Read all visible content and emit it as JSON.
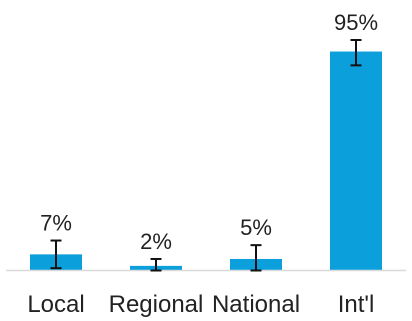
{
  "chart_data": {
    "type": "bar",
    "title": "",
    "xlabel": "",
    "ylabel": "",
    "categories": [
      "Local",
      "Regional",
      "National",
      "Int'l"
    ],
    "values": [
      7,
      2,
      5,
      95
    ],
    "data_labels": [
      "7%",
      "2%",
      "5%",
      "95%"
    ],
    "error_bars": [
      {
        "low": 1,
        "high": 13
      },
      {
        "low": 0,
        "high": 5
      },
      {
        "low": 0,
        "high": 11
      },
      {
        "low": 89,
        "high": 100
      }
    ],
    "ylim": [
      0,
      100
    ],
    "grid": false,
    "legend": "none",
    "colors": {
      "bar": "#0b9fdc",
      "error_bar": "#111111",
      "axis": "#d9d9d9",
      "text": "#222222"
    }
  }
}
